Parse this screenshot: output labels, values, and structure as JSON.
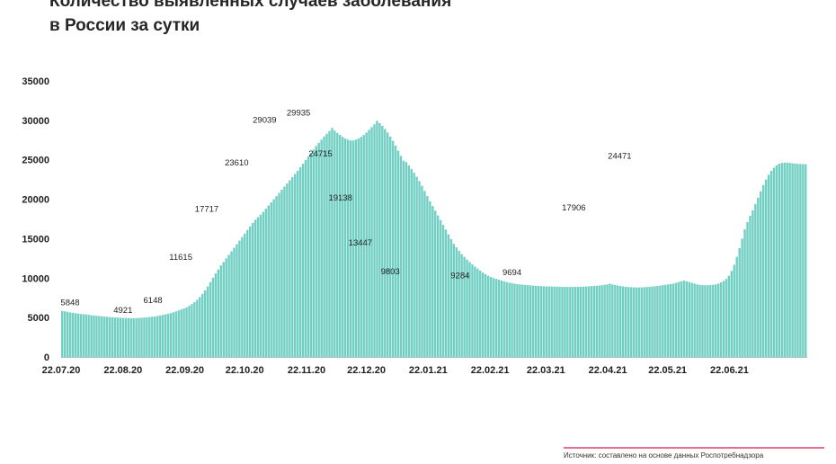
{
  "chart_title": {
    "line1": "Количество выявленных случаев заболевания",
    "line2": "в России за сутки"
  },
  "source": "Источник: составлено на основе данных Роспотребнадзора",
  "colors": {
    "bars": "#72cfc3",
    "text": "#1f1f1f",
    "accent_line": "#e8708a"
  },
  "chart_data": {
    "type": "bar",
    "title": "Количество выявленных случаев заболевания в России за сутки",
    "xlabel": "",
    "ylabel": "",
    "ylim": [
      0,
      35000
    ],
    "yticks": [
      0,
      5000,
      10000,
      15000,
      20000,
      25000,
      30000,
      35000
    ],
    "xticks": [
      "22.07.20",
      "22.08.20",
      "22.09.20",
      "22.10.20",
      "22.11.20",
      "22.12.20",
      "22.01.21",
      "22.02.21",
      "22.03.21",
      "22.04.21",
      "22.05.21",
      "22.06.21"
    ],
    "grid": false,
    "legend": "none",
    "x_start": "22.07.20",
    "x_end": "31.07.21",
    "series": [
      {
        "values": [
          5848,
          5800,
          5720,
          5650,
          5610,
          5550,
          5500,
          5460,
          5430,
          5400,
          5350,
          5300,
          5260,
          5230,
          5200,
          5160,
          5120,
          5090,
          5060,
          5040,
          5010,
          4990,
          4970,
          4950,
          4940,
          4930,
          4920,
          4921,
          4930,
          4950,
          4970,
          5000,
          5030,
          5070,
          5110,
          5150,
          5200,
          5260,
          5330,
          5400,
          5480,
          5570,
          5670,
          5780,
          5900,
          6030,
          6148,
          6300,
          6480,
          6700,
          6950,
          7250,
          7600,
          8000,
          8450,
          8950,
          9500,
          10050,
          10600,
          11100,
          11615,
          12050,
          12500,
          12950,
          13400,
          13850,
          14300,
          14750,
          15200,
          15650,
          16100,
          16550,
          17000,
          17400,
          17717,
          18050,
          18400,
          18800,
          19200,
          19600,
          20000,
          20400,
          20800,
          21200,
          21600,
          22000,
          22400,
          22800,
          23200,
          23610,
          24050,
          24500,
          24950,
          25400,
          25850,
          26300,
          26750,
          27150,
          27550,
          27950,
          28300,
          28650,
          29039,
          28700,
          28400,
          28150,
          27900,
          27700,
          27550,
          27450,
          27450,
          27550,
          27700,
          27900,
          28150,
          28450,
          28800,
          29150,
          29500,
          29935,
          29650,
          29300,
          28900,
          28450,
          27950,
          27400,
          26800,
          26150,
          25500,
          24900,
          24715,
          24300,
          23850,
          23350,
          22850,
          22300,
          21700,
          21050,
          20400,
          19750,
          19138,
          18550,
          17950,
          17350,
          16750,
          16150,
          15550,
          14950,
          14350,
          13900,
          13447,
          13050,
          12700,
          12350,
          12050,
          11750,
          11450,
          11200,
          10950,
          10700,
          10500,
          10300,
          10150,
          10000,
          9900,
          9803,
          9700,
          9600,
          9500,
          9420,
          9350,
          9290,
          9240,
          9200,
          9170,
          9140,
          9110,
          9080,
          9050,
          9020,
          9000,
          8980,
          8960,
          8950,
          8940,
          8930,
          8920,
          8910,
          8900,
          8890,
          8880,
          8880,
          8880,
          8880,
          8890,
          8900,
          8910,
          8920,
          8940,
          8960,
          8980,
          9000,
          9030,
          9060,
          9100,
          9150,
          9200,
          9284,
          9200,
          9120,
          9050,
          9000,
          8950,
          8900,
          8870,
          8850,
          8830,
          8820,
          8820,
          8830,
          8850,
          8870,
          8900,
          8930,
          8970,
          9010,
          9050,
          9100,
          9150,
          9200,
          9250,
          9300,
          9400,
          9500,
          9600,
          9694,
          9600,
          9500,
          9400,
          9300,
          9200,
          9150,
          9120,
          9100,
          9100,
          9120,
          9150,
          9200,
          9300,
          9450,
          9650,
          9900,
          10300,
          10900,
          11700,
          12700,
          13800,
          15000,
          16200,
          17100,
          17906,
          18600,
          19400,
          20200,
          21000,
          21800,
          22500,
          23100,
          23600,
          24000,
          24300,
          24500,
          24600,
          24650,
          24640,
          24600,
          24560,
          24520,
          24490,
          24471,
          24450,
          24440
        ]
      }
    ],
    "labeled_points": [
      {
        "x": "22.07.20",
        "value": 5848
      },
      {
        "x": "22.08.20",
        "value": 4921
      },
      {
        "x": "06.09.20",
        "value": 6148
      },
      {
        "x": "20.09.20",
        "value": 11615
      },
      {
        "x": "03.10.20",
        "value": 17717
      },
      {
        "x": "18.10.20",
        "value": 23610
      },
      {
        "x": "01.11.20",
        "value": 29039
      },
      {
        "x": "18.11.20",
        "value": 29935
      },
      {
        "x": "29.11.20",
        "value": 24715
      },
      {
        "x": "09.12.20",
        "value": 19138
      },
      {
        "x": "19.12.20",
        "value": 13447
      },
      {
        "x": "03.01.21",
        "value": 9803
      },
      {
        "x": "07.02.21",
        "value": 9284
      },
      {
        "x": "05.03.21",
        "value": 9694
      },
      {
        "x": "05.04.21",
        "value": 17906
      },
      {
        "x": "28.04.21",
        "value": 24471
      }
    ]
  }
}
